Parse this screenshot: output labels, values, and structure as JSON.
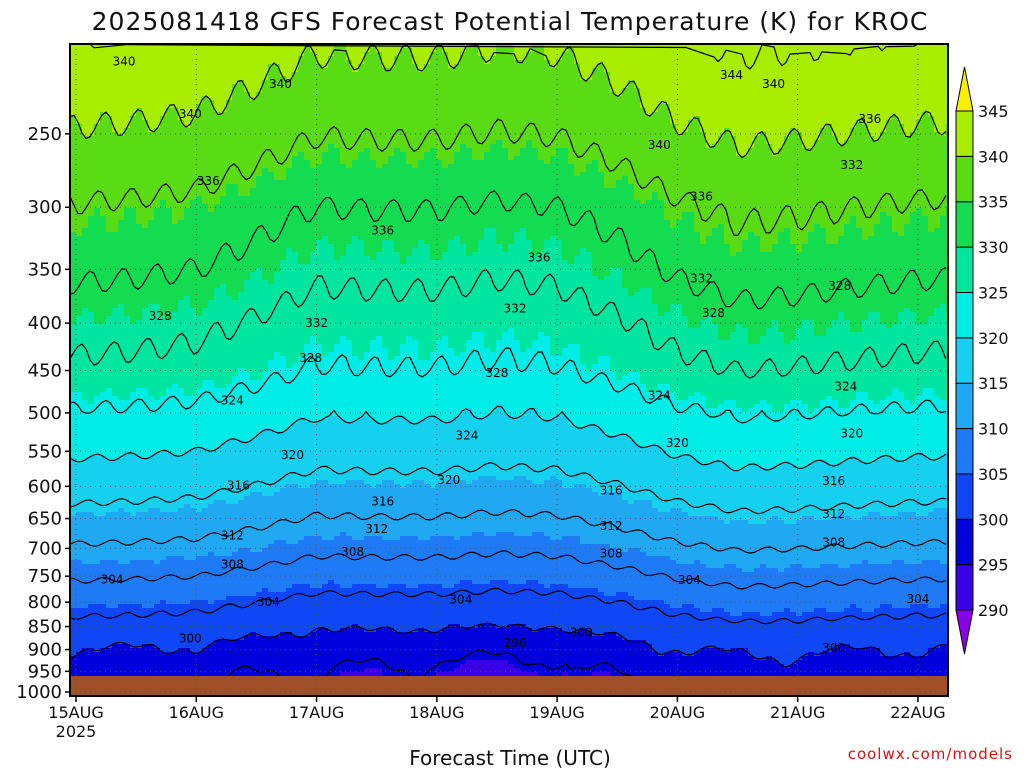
{
  "chart_data": {
    "type": "heatmap",
    "title": "2025081418 GFS Forecast Potential Temperature (K) for KROC",
    "xlabel": "Forecast Time (UTC)",
    "x_ticks": [
      {
        "label": "15AUG",
        "day": 15,
        "sub": "2025"
      },
      {
        "label": "16AUG",
        "day": 16
      },
      {
        "label": "17AUG",
        "day": 17
      },
      {
        "label": "18AUG",
        "day": 18
      },
      {
        "label": "19AUG",
        "day": 19
      },
      {
        "label": "20AUG",
        "day": 20
      },
      {
        "label": "21AUG",
        "day": 21
      },
      {
        "label": "22AUG",
        "day": 22
      }
    ],
    "x_range_days": [
      14.95,
      22.25
    ],
    "y_levels_hpa": [
      250,
      300,
      350,
      400,
      450,
      500,
      550,
      600,
      650,
      700,
      750,
      800,
      850,
      900,
      950,
      1000
    ],
    "y_range_hpa": [
      200,
      1010
    ],
    "y_scale": "log-pressure",
    "grid": "dotted",
    "colorbar": {
      "labels": [
        345,
        340,
        335,
        330,
        325,
        320,
        315,
        310,
        305,
        300,
        295,
        290
      ],
      "boundaries": [
        290,
        295,
        300,
        305,
        310,
        315,
        320,
        325,
        330,
        335,
        340,
        345
      ],
      "colors": [
        "#8a00e6",
        "#3a00e6",
        "#0000dc",
        "#0f46f5",
        "#1f7af5",
        "#21a8f3",
        "#16d0f0",
        "#00ece6",
        "#00e6a0",
        "#14dc50",
        "#5adc14",
        "#a8ec00",
        "#f8f000"
      ],
      "placement": "right"
    },
    "ground_color": "#a05028",
    "contour_interval_k": 4,
    "contour_labels": [
      {
        "v": 340,
        "day": 15.4,
        "p": 209
      },
      {
        "v": 340,
        "day": 15.95,
        "p": 238
      },
      {
        "v": 340,
        "day": 16.7,
        "p": 221
      },
      {
        "v": 344,
        "day": 20.45,
        "p": 216
      },
      {
        "v": 340,
        "day": 20.8,
        "p": 221
      },
      {
        "v": 340,
        "day": 19.85,
        "p": 257
      },
      {
        "v": 336,
        "day": 16.1,
        "p": 281
      },
      {
        "v": 336,
        "day": 17.55,
        "p": 318
      },
      {
        "v": 336,
        "day": 18.85,
        "p": 340
      },
      {
        "v": 336,
        "day": 20.2,
        "p": 292
      },
      {
        "v": 336,
        "day": 21.6,
        "p": 241
      },
      {
        "v": 332,
        "day": 21.45,
        "p": 270
      },
      {
        "v": 332,
        "day": 20.2,
        "p": 358
      },
      {
        "v": 332,
        "day": 18.65,
        "p": 386
      },
      {
        "v": 332,
        "day": 17.0,
        "p": 400
      },
      {
        "v": 328,
        "day": 15.7,
        "p": 393
      },
      {
        "v": 328,
        "day": 16.95,
        "p": 436
      },
      {
        "v": 328,
        "day": 18.5,
        "p": 453
      },
      {
        "v": 328,
        "day": 20.3,
        "p": 390
      },
      {
        "v": 328,
        "day": 21.35,
        "p": 365
      },
      {
        "v": 324,
        "day": 16.3,
        "p": 485
      },
      {
        "v": 324,
        "day": 18.25,
        "p": 529
      },
      {
        "v": 324,
        "day": 19.85,
        "p": 479
      },
      {
        "v": 324,
        "day": 21.4,
        "p": 468
      },
      {
        "v": 320,
        "day": 16.8,
        "p": 555
      },
      {
        "v": 320,
        "day": 18.1,
        "p": 591
      },
      {
        "v": 320,
        "day": 20.0,
        "p": 539
      },
      {
        "v": 320,
        "day": 21.45,
        "p": 526
      },
      {
        "v": 316,
        "day": 16.35,
        "p": 599
      },
      {
        "v": 316,
        "day": 17.55,
        "p": 623
      },
      {
        "v": 316,
        "day": 19.45,
        "p": 606
      },
      {
        "v": 316,
        "day": 21.3,
        "p": 592
      },
      {
        "v": 312,
        "day": 16.3,
        "p": 678
      },
      {
        "v": 312,
        "day": 17.5,
        "p": 667
      },
      {
        "v": 312,
        "day": 19.45,
        "p": 662
      },
      {
        "v": 312,
        "day": 21.3,
        "p": 643
      },
      {
        "v": 308,
        "day": 16.3,
        "p": 729
      },
      {
        "v": 308,
        "day": 17.3,
        "p": 706
      },
      {
        "v": 308,
        "day": 19.45,
        "p": 709
      },
      {
        "v": 308,
        "day": 21.3,
        "p": 690
      },
      {
        "v": 304,
        "day": 15.3,
        "p": 756
      },
      {
        "v": 304,
        "day": 16.6,
        "p": 800
      },
      {
        "v": 304,
        "day": 18.2,
        "p": 795
      },
      {
        "v": 304,
        "day": 20.1,
        "p": 757
      },
      {
        "v": 304,
        "day": 22.0,
        "p": 794
      },
      {
        "v": 300,
        "day": 15.95,
        "p": 876
      },
      {
        "v": 300,
        "day": 19.2,
        "p": 863
      },
      {
        "v": 300,
        "day": 21.3,
        "p": 897
      },
      {
        "v": 296,
        "day": 18.65,
        "p": 885
      }
    ],
    "profile_theta_k": [
      {
        "p": 200,
        "theta": 343
      },
      {
        "p": 250,
        "theta": 339
      },
      {
        "p": 300,
        "theta": 335
      },
      {
        "p": 350,
        "theta": 332
      },
      {
        "p": 400,
        "theta": 329
      },
      {
        "p": 450,
        "theta": 326.5
      },
      {
        "p": 500,
        "theta": 323
      },
      {
        "p": 550,
        "theta": 320
      },
      {
        "p": 600,
        "theta": 317
      },
      {
        "p": 650,
        "theta": 314
      },
      {
        "p": 700,
        "theta": 311
      },
      {
        "p": 750,
        "theta": 308
      },
      {
        "p": 800,
        "theta": 305
      },
      {
        "p": 850,
        "theta": 302.5
      },
      {
        "p": 900,
        "theta": 300.5
      },
      {
        "p": 950,
        "theta": 299
      },
      {
        "p": 1010,
        "theta": 298
      }
    ],
    "anomaly_k_by_day": [
      {
        "day": 14.95,
        "a": 0.8
      },
      {
        "day": 15.5,
        "a": 0.5
      },
      {
        "day": 16.0,
        "a": 0.0
      },
      {
        "day": 16.5,
        "a": -1.5
      },
      {
        "day": 17.0,
        "a": -3.2
      },
      {
        "day": 17.5,
        "a": -3.0
      },
      {
        "day": 18.0,
        "a": -3.0
      },
      {
        "day": 18.5,
        "a": -3.6
      },
      {
        "day": 19.0,
        "a": -3.2
      },
      {
        "day": 19.5,
        "a": -1.6
      },
      {
        "day": 20.0,
        "a": 0.5
      },
      {
        "day": 20.5,
        "a": 1.8
      },
      {
        "day": 21.0,
        "a": 1.5
      },
      {
        "day": 21.5,
        "a": 1.0
      },
      {
        "day": 22.0,
        "a": 0.6
      },
      {
        "day": 22.25,
        "a": 0.5
      }
    ],
    "near_surface_cool_k": 4
  },
  "credit": "coolwx.com/models"
}
